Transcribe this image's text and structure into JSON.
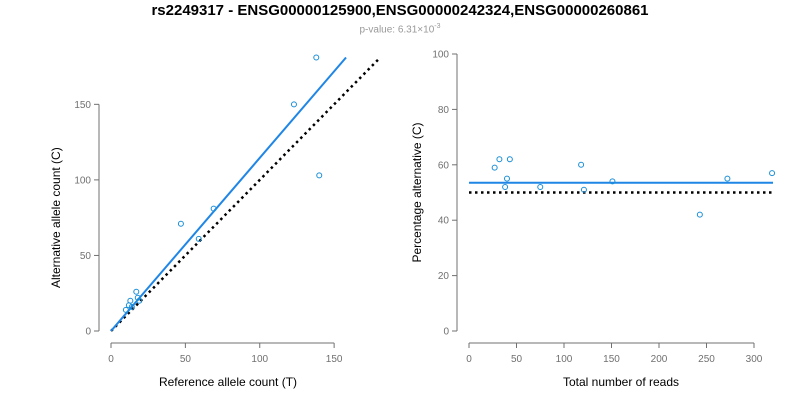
{
  "header": {
    "title": "rs2249317 - ENSG00000125900,ENSG00000242324,ENSG00000260861",
    "subtitle_prefix": "p-value: 6.31×10",
    "subtitle_exp": "-3"
  },
  "colors": {
    "points": "#1a8fd8",
    "fit": "#1f86e6",
    "reference": "#000000",
    "axis": "#707070"
  },
  "chart_data": [
    {
      "type": "scatter",
      "xlabel": "Reference allele count (T)",
      "ylabel": "Alternative allele count (C)",
      "xlim": [
        0,
        160
      ],
      "ylim": [
        0,
        180
      ],
      "xticks": [
        0,
        50,
        100,
        150
      ],
      "yticks": [
        0,
        50,
        100,
        150
      ],
      "points": [
        {
          "x": 10,
          "y": 14
        },
        {
          "x": 12,
          "y": 17
        },
        {
          "x": 13,
          "y": 20
        },
        {
          "x": 14,
          "y": 16
        },
        {
          "x": 17,
          "y": 26
        },
        {
          "x": 18,
          "y": 22
        },
        {
          "x": 19,
          "y": 20
        },
        {
          "x": 47,
          "y": 71
        },
        {
          "x": 59,
          "y": 61
        },
        {
          "x": 69,
          "y": 81
        },
        {
          "x": 123,
          "y": 150
        },
        {
          "x": 138,
          "y": 181
        },
        {
          "x": 140,
          "y": 103
        }
      ],
      "fit_line": {
        "x1": 0,
        "y1": 0,
        "x2": 158,
        "y2": 181
      },
      "reference_line": {
        "x1": 0,
        "y1": 0,
        "x2": 181,
        "y2": 181
      },
      "grid": false
    },
    {
      "type": "scatter",
      "xlabel": "Total number of reads",
      "ylabel": "Percentage alternative (C)",
      "xlim": [
        0,
        320
      ],
      "ylim": [
        0,
        100
      ],
      "xticks": [
        0,
        50,
        100,
        150,
        200,
        250,
        300
      ],
      "yticks": [
        0,
        20,
        40,
        60,
        80,
        100
      ],
      "points": [
        {
          "x": 27,
          "y": 59
        },
        {
          "x": 32,
          "y": 62
        },
        {
          "x": 38,
          "y": 52
        },
        {
          "x": 40,
          "y": 55
        },
        {
          "x": 43,
          "y": 62
        },
        {
          "x": 75,
          "y": 52
        },
        {
          "x": 118,
          "y": 60
        },
        {
          "x": 121,
          "y": 51
        },
        {
          "x": 151,
          "y": 54
        },
        {
          "x": 243,
          "y": 42
        },
        {
          "x": 272,
          "y": 55
        },
        {
          "x": 319,
          "y": 57
        }
      ],
      "fit_line": {
        "x1": 0,
        "y1": 53.5,
        "x2": 320,
        "y2": 53.5
      },
      "reference_line": {
        "x1": 0,
        "y1": 50,
        "x2": 320,
        "y2": 50
      },
      "grid": false
    }
  ]
}
